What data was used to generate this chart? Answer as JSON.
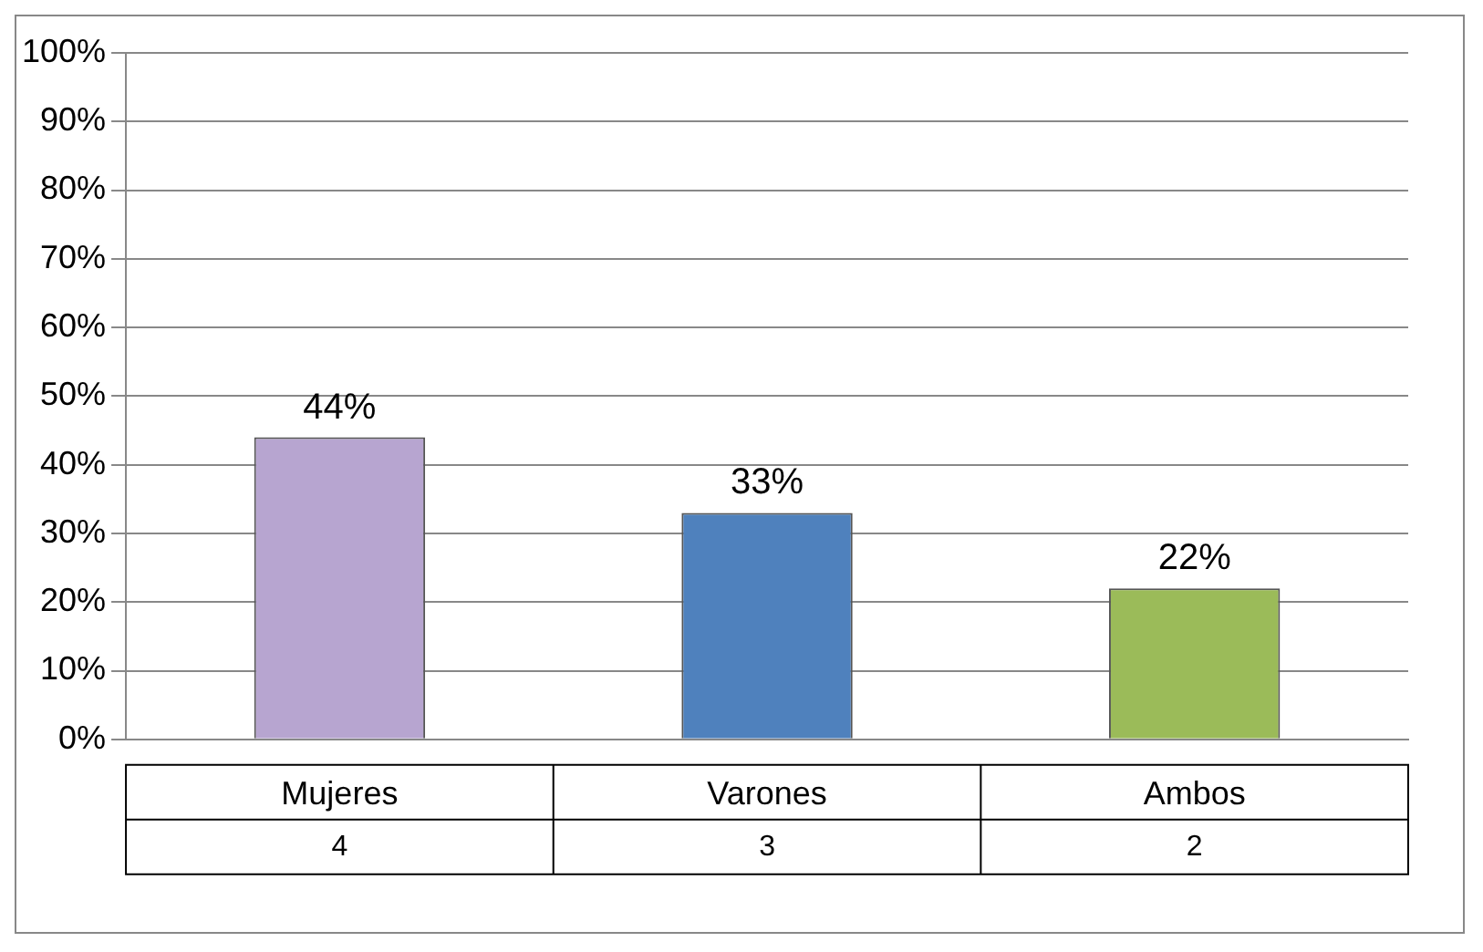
{
  "chart_data": {
    "type": "bar",
    "categories": [
      "Mujeres",
      "Varones",
      "Ambos"
    ],
    "values": [
      44,
      33,
      22
    ],
    "colors": [
      "#b7a5d0",
      "#4f81bd",
      "#9bbb59"
    ],
    "value_labels": [
      "44%",
      "33%",
      "22%"
    ],
    "annotations": [
      "4",
      "3",
      "2"
    ],
    "ylim": [
      0,
      100
    ],
    "yticks": [
      {
        "value": 0,
        "label": "0%"
      },
      {
        "value": 10,
        "label": "10%"
      },
      {
        "value": 20,
        "label": "20%"
      },
      {
        "value": 30,
        "label": "30%"
      },
      {
        "value": 40,
        "label": "40%"
      },
      {
        "value": 50,
        "label": "50%"
      },
      {
        "value": 60,
        "label": "60%"
      },
      {
        "value": 70,
        "label": "70%"
      },
      {
        "value": 80,
        "label": "80%"
      },
      {
        "value": 90,
        "label": "90%"
      },
      {
        "value": 100,
        "label": "100%"
      }
    ],
    "grid": "y"
  }
}
